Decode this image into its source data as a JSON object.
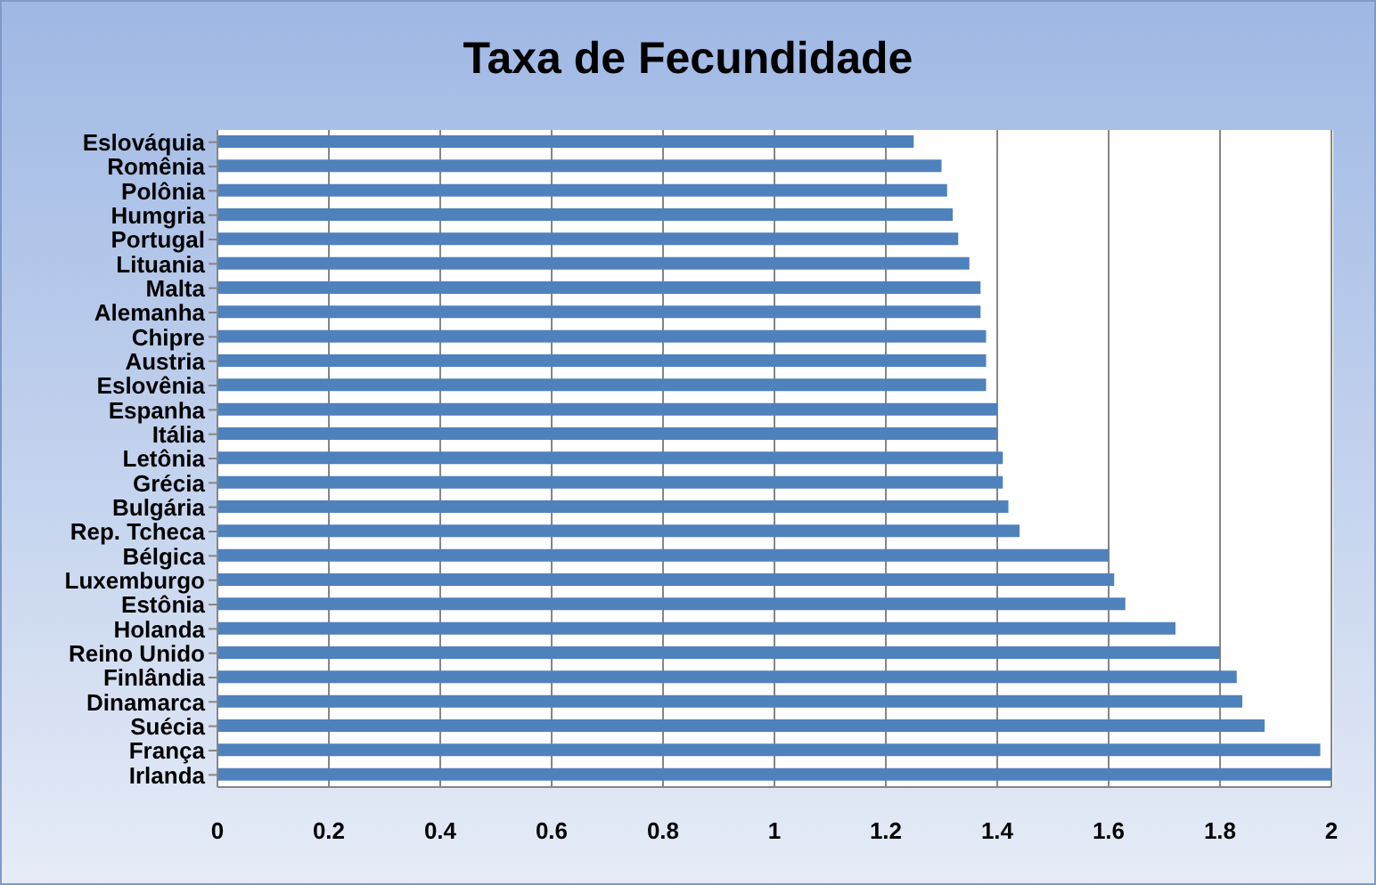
{
  "chart_data": {
    "type": "bar",
    "orientation": "horizontal",
    "title": "Taxa de Fecundidade",
    "categories": [
      "Eslováquia",
      "Romênia",
      "Polônia",
      "Humgria",
      "Portugal",
      "Lituania",
      "Malta",
      "Alemanha",
      "Chipre",
      "Austria",
      "Eslovênia",
      "Espanha",
      "Itália",
      "Letônia",
      "Grécia",
      "Bulgária",
      "Rep. Tcheca",
      "Bélgica",
      "Luxemburgo",
      "Estônia",
      "Holanda",
      "Reino Unido",
      "Finlândia",
      "Dinamarca",
      "Suécia",
      "França",
      "Irlanda"
    ],
    "values": [
      1.25,
      1.3,
      1.31,
      1.32,
      1.33,
      1.35,
      1.37,
      1.37,
      1.38,
      1.38,
      1.38,
      1.4,
      1.4,
      1.41,
      1.41,
      1.42,
      1.44,
      1.6,
      1.61,
      1.63,
      1.72,
      1.8,
      1.83,
      1.84,
      1.88,
      1.98,
      2.0
    ],
    "color": "#4f81bd",
    "xlim": [
      0,
      2
    ],
    "xticks": [
      0,
      0.2,
      0.4,
      0.6,
      0.8,
      1,
      1.2,
      1.4,
      1.6,
      1.8,
      2
    ],
    "grid": "x",
    "legend": false
  }
}
